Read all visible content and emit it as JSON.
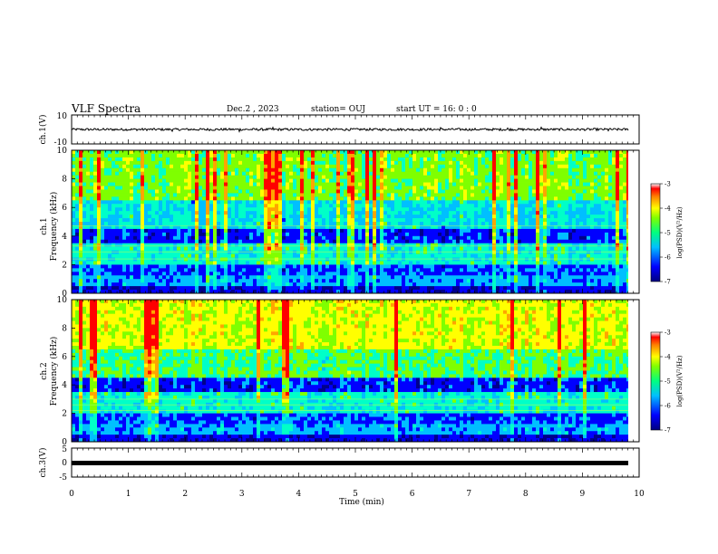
{
  "header": {
    "title": "VLF Spectra",
    "date": "Dec.2 , 2023",
    "station": "station= OUJ",
    "start": "start UT = 16: 0 : 0"
  },
  "chart_data": [
    {
      "type": "line",
      "panel": "ch1-waveform",
      "ylabel": "ch.1(V)",
      "ylim": [
        -10,
        10
      ],
      "yticks": [
        "10",
        "-10"
      ],
      "xlim": [
        0,
        10
      ],
      "series": [
        {
          "values_description_free": true,
          "level": 0,
          "amplitude": 1.2
        }
      ]
    },
    {
      "type": "heatmap",
      "panel": "ch1-spectrogram",
      "ylabel": "ch.1\nFrequency (kHz)",
      "ylim": [
        0,
        10
      ],
      "yticks": [
        "0",
        "2",
        "4",
        "6",
        "8",
        "10"
      ],
      "xlim": [
        0,
        10
      ],
      "colorbar": {
        "label": "log(PSD)(V²/Hz)",
        "range": [
          -7,
          -3
        ],
        "ticks": [
          "-3",
          "-4",
          "-5",
          "-6",
          "-7"
        ]
      }
    },
    {
      "type": "heatmap",
      "panel": "ch2-spectrogram",
      "ylabel": "ch.2\nFrequency (kHz)",
      "ylim": [
        0,
        10
      ],
      "yticks": [
        "0",
        "2",
        "4",
        "6",
        "8",
        "10"
      ],
      "xlim": [
        0,
        10
      ],
      "colorbar": {
        "label": "log(PSD)(V²/Hz)",
        "range": [
          -7,
          -3
        ],
        "ticks": [
          "-3",
          "-4",
          "-5",
          "-6",
          "-7"
        ]
      }
    },
    {
      "type": "line",
      "panel": "ch3-waveform",
      "ylabel": "ch.3(V)",
      "ylim": [
        -5,
        5
      ],
      "yticks": [
        "5",
        "0",
        "-5"
      ],
      "xlim": [
        0,
        10
      ],
      "series": [
        {
          "level": -0.5
        }
      ]
    }
  ],
  "xaxis": {
    "label": "Time (min)",
    "ticks": [
      "0",
      "1",
      "2",
      "3",
      "4",
      "5",
      "6",
      "7",
      "8",
      "9",
      "10"
    ]
  },
  "colors": {
    "scale": [
      "#00008b",
      "#0000ff",
      "#00bfff",
      "#00ffc8",
      "#7fff00",
      "#ffff00",
      "#ffa500",
      "#ff0000"
    ]
  }
}
